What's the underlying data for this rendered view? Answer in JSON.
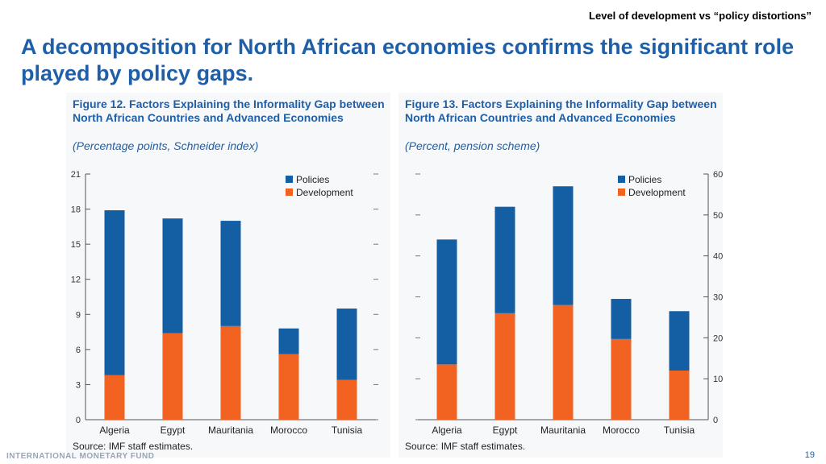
{
  "header": {
    "subtitle": "Level of development vs “policy distortions”",
    "headline": "A decomposition for North African economies confirms the significant role played by policy gaps."
  },
  "colors": {
    "policies": "#145ea3",
    "development": "#f26322",
    "accent": "#1f5fa8"
  },
  "chart_data": [
    {
      "type": "bar",
      "stacked": true,
      "title": "Figure 12. Factors Explaining the Informality Gap between North African Countries and Advanced Economies",
      "subtitle": "(Percentage points, Schneider index)",
      "source": "Source: IMF staff estimates.",
      "categories": [
        "Algeria",
        "Egypt",
        "Mauritania",
        "Morocco",
        "Tunisia"
      ],
      "series": [
        {
          "name": "Development",
          "values": [
            3.8,
            7.4,
            8.0,
            5.6,
            3.4
          ]
        },
        {
          "name": "Policies",
          "values": [
            14.1,
            9.8,
            9.0,
            2.2,
            6.1
          ]
        }
      ],
      "ylim": [
        0,
        21
      ],
      "yticks": [
        "0",
        "3",
        "6",
        "9",
        "12",
        "15",
        "18",
        "21"
      ],
      "axis_side": "left",
      "legend_position": "top-right"
    },
    {
      "type": "bar",
      "stacked": true,
      "title": "Figure 13. Factors Explaining the Informality Gap between North African Countries and Advanced Economies",
      "subtitle": "(Percent, pension scheme)",
      "source": "Source: IMF staff estimates.",
      "categories": [
        "Algeria",
        "Egypt",
        "Mauritania",
        "Morocco",
        "Tunisia"
      ],
      "series": [
        {
          "name": "Development",
          "values": [
            13.5,
            26.0,
            28.0,
            19.7,
            12.0
          ]
        },
        {
          "name": "Policies",
          "values": [
            30.5,
            26.0,
            29.0,
            9.8,
            14.5
          ]
        }
      ],
      "ylim": [
        0,
        60
      ],
      "yticks": [
        "0",
        "10",
        "20",
        "30",
        "40",
        "50",
        "60"
      ],
      "axis_side": "right",
      "legend_position": "top-right"
    }
  ],
  "footer": {
    "org": "INTERNATIONAL MONETARY FUND",
    "page": "19"
  }
}
